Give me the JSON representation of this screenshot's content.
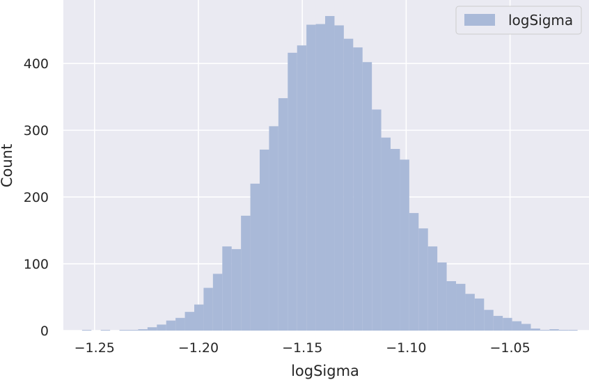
{
  "chart_data": {
    "type": "bar",
    "title": "",
    "xlabel": "logSigma",
    "ylabel": "Count",
    "xlim": [
      -1.265,
      -1.012
    ],
    "ylim": [
      0,
      495
    ],
    "x_ticks": [
      -1.25,
      -1.2,
      -1.15,
      -1.1,
      -1.05
    ],
    "x_tick_labels": [
      "−1.25",
      "−1.20",
      "−1.15",
      "−1.10",
      "−1.05"
    ],
    "y_ticks": [
      0,
      100,
      200,
      300,
      400
    ],
    "y_tick_labels": [
      "0",
      "100",
      "200",
      "300",
      "400"
    ],
    "grid": true,
    "legend_position": "top-right",
    "colors": {
      "bar": "#a9b9d8",
      "background": "#eaeaf2",
      "grid": "#ffffff"
    },
    "series": [
      {
        "name": "logSigma",
        "bin_width": 0.0045,
        "bin_starts": [
          -1.256,
          -1.2515,
          -1.247,
          -1.2425,
          -1.238,
          -1.2335,
          -1.229,
          -1.2245,
          -1.22,
          -1.2155,
          -1.211,
          -1.2065,
          -1.202,
          -1.1975,
          -1.193,
          -1.1885,
          -1.184,
          -1.1795,
          -1.175,
          -1.1705,
          -1.166,
          -1.1615,
          -1.157,
          -1.1525,
          -1.148,
          -1.1435,
          -1.139,
          -1.1345,
          -1.13,
          -1.1255,
          -1.121,
          -1.1165,
          -1.112,
          -1.1075,
          -1.103,
          -1.0985,
          -1.094,
          -1.0895,
          -1.085,
          -1.0805,
          -1.076,
          -1.0715,
          -1.067,
          -1.0625,
          -1.058,
          -1.0535,
          -1.049,
          -1.0445,
          -1.04,
          -1.0355,
          -1.031,
          -1.0265,
          -1.022
        ],
        "values": [
          1,
          0,
          1,
          0,
          1,
          1,
          2,
          5,
          9,
          15,
          19,
          28,
          39,
          64,
          85,
          126,
          122,
          172,
          220,
          271,
          306,
          348,
          416,
          427,
          458,
          459,
          471,
          457,
          437,
          424,
          402,
          331,
          289,
          272,
          256,
          176,
          153,
          126,
          102,
          74,
          70,
          55,
          48,
          31,
          22,
          19,
          14,
          10,
          3,
          1,
          2,
          1,
          1
        ]
      }
    ]
  }
}
